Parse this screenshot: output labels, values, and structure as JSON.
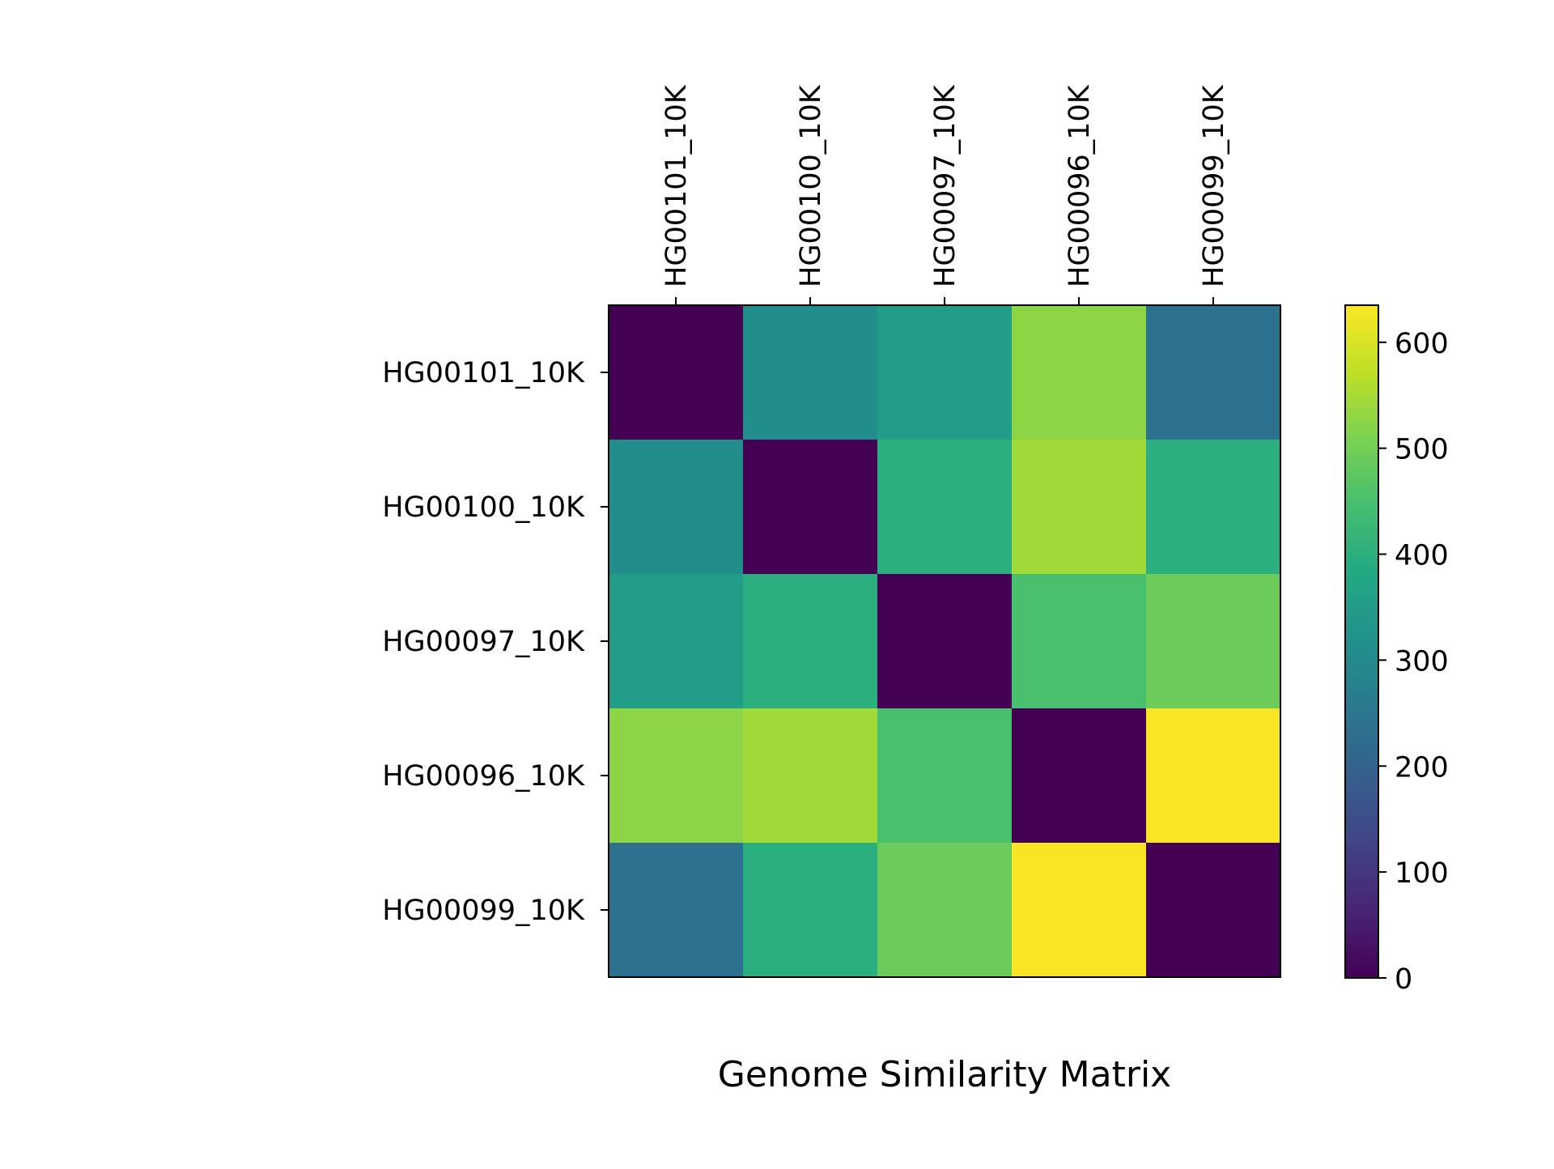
{
  "chart_data": {
    "type": "heatmap",
    "title": "Genome Similarity Matrix",
    "row_labels": [
      "HG00101_10K",
      "HG00100_10K",
      "HG00097_10K",
      "HG00096_10K",
      "HG00099_10K"
    ],
    "col_labels": [
      "HG00101_10K",
      "HG00100_10K",
      "HG00097_10K",
      "HG00096_10K",
      "HG00099_10K"
    ],
    "values": [
      [
        0,
        310,
        350,
        525,
        240
      ],
      [
        310,
        0,
        400,
        545,
        400
      ],
      [
        350,
        400,
        0,
        450,
        490
      ],
      [
        525,
        545,
        450,
        0,
        630
      ],
      [
        240,
        400,
        490,
        630,
        0
      ]
    ],
    "colormap": "viridis",
    "colorbar": {
      "min": 0,
      "max": 635,
      "ticks": [
        0,
        100,
        200,
        300,
        400,
        500,
        600
      ]
    },
    "x_tick_position": "top",
    "x_tick_rotation": "vertical",
    "grid": false,
    "legend": "colorbar at right"
  }
}
